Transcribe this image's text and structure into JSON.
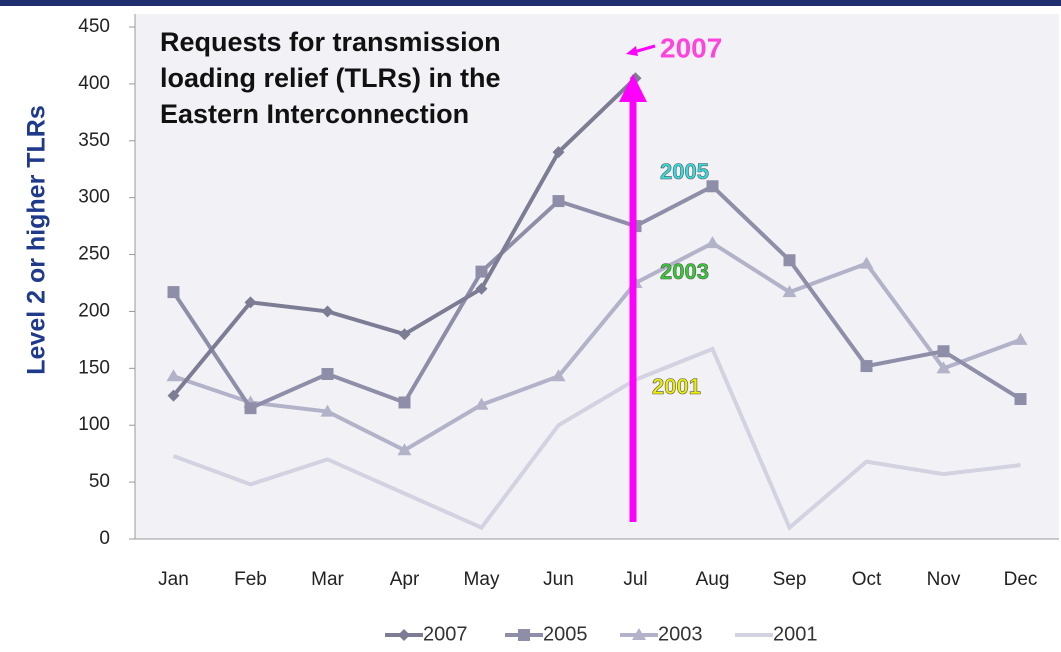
{
  "chart_data": {
    "type": "line",
    "title": "Requests for transmission loading relief (TLRs) in the Eastern Interconnection",
    "y_label": "Level 2 or higher TLRs",
    "categories": [
      "Jan",
      "Feb",
      "Mar",
      "Apr",
      "May",
      "Jun",
      "Jul",
      "Aug",
      "Sep",
      "Oct",
      "Nov",
      "Dec"
    ],
    "series": [
      {
        "name": "2007",
        "color": "#7c7c94",
        "marker": "diamond",
        "values": [
          126,
          208,
          200,
          180,
          220,
          340,
          405,
          null,
          null,
          null,
          null,
          null
        ]
      },
      {
        "name": "2005",
        "color": "#8e8ea8",
        "marker": "square",
        "values": [
          217,
          115,
          145,
          120,
          235,
          297,
          275,
          310,
          245,
          152,
          165,
          123
        ]
      },
      {
        "name": "2003",
        "color": "#b2b2c8",
        "marker": "triangle",
        "values": [
          143,
          120,
          112,
          78,
          118,
          143,
          225,
          260,
          217,
          242,
          150,
          175
        ]
      },
      {
        "name": "2001",
        "color": "#d2d2e0",
        "marker": "none",
        "values": [
          73,
          48,
          70,
          40,
          10,
          100,
          140,
          167,
          10,
          68,
          57,
          65
        ]
      }
    ],
    "ylim": [
      0,
      450
    ],
    "yticks": [
      0,
      50,
      100,
      150,
      200,
      250,
      300,
      350,
      400,
      450
    ],
    "annotations": [
      {
        "text": "2007",
        "color": "#ff44dd"
      },
      {
        "text": "2005",
        "color": "#33dddd"
      },
      {
        "text": "2003",
        "color": "#33cc33"
      },
      {
        "text": "2001",
        "color": "#eeee00"
      }
    ]
  }
}
